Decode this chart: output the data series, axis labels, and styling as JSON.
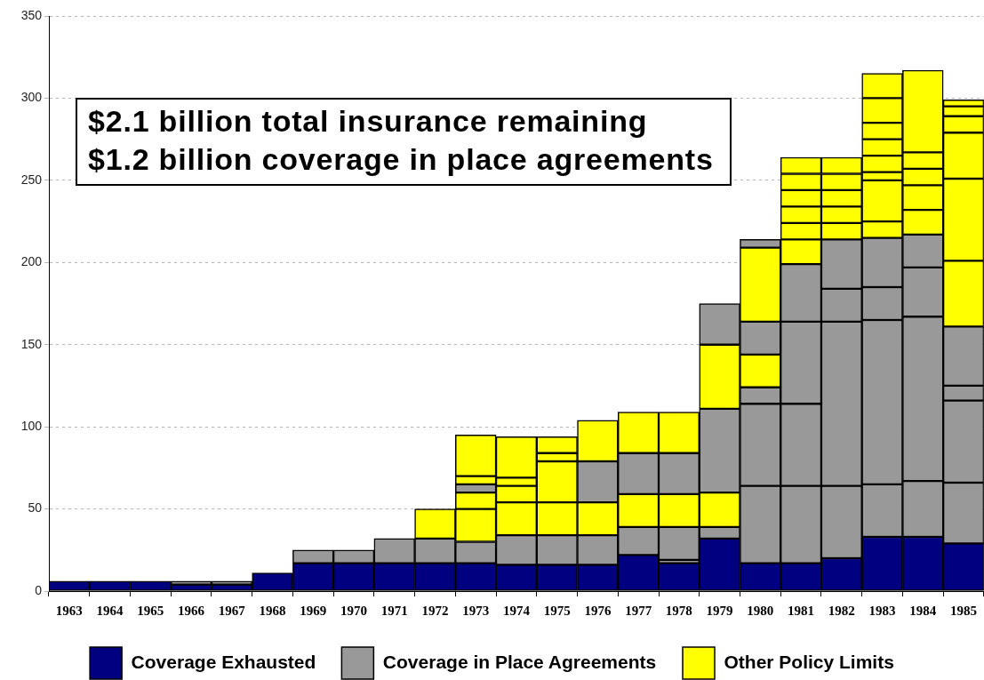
{
  "chart_data": {
    "type": "bar",
    "stacked": true,
    "categories": [
      "1963",
      "1964",
      "1965",
      "1966",
      "1967",
      "1968",
      "1969",
      "1970",
      "1971",
      "1972",
      "1973",
      "1974",
      "1975",
      "1976",
      "1977",
      "1978",
      "1979",
      "1980",
      "1981",
      "1982",
      "1983",
      "1984",
      "1985"
    ],
    "series": [
      {
        "name": "Coverage Exhausted",
        "color": "#000080",
        "values": [
          6,
          6,
          6,
          4,
          4,
          11,
          17,
          17,
          17,
          17,
          17,
          16,
          16,
          16,
          22,
          17,
          32,
          17,
          17,
          20,
          33,
          33,
          29
        ]
      },
      {
        "name": "Coverage in Place Agreements",
        "color": "#999999",
        "values": [
          null,
          null,
          null,
          2,
          2,
          null,
          8,
          8,
          15,
          15,
          13,
          18,
          18,
          18,
          17,
          2,
          7,
          47,
          47,
          44,
          32,
          34,
          37
        ]
      },
      {
        "color": "#999999",
        "values": [
          null,
          null,
          null,
          null,
          null,
          null,
          null,
          null,
          null,
          null,
          null,
          null,
          null,
          null,
          null,
          20,
          null,
          50,
          50,
          100,
          100,
          100,
          50
        ]
      },
      {
        "color": "#999999",
        "values": [
          null,
          null,
          null,
          null,
          null,
          null,
          null,
          null,
          null,
          null,
          null,
          null,
          null,
          null,
          null,
          null,
          null,
          10,
          50,
          20,
          20,
          30,
          9
        ]
      },
      {
        "color": "#999999",
        "values": [
          null,
          null,
          null,
          null,
          null,
          null,
          null,
          null,
          null,
          null,
          null,
          null,
          null,
          null,
          null,
          null,
          null,
          null,
          35,
          30,
          30,
          20,
          36
        ]
      },
      {
        "name": "Other Policy Limits",
        "color": "#ffff00",
        "values": [
          null,
          null,
          null,
          null,
          null,
          null,
          null,
          null,
          null,
          18,
          20,
          20,
          20,
          20,
          20,
          20,
          21,
          20,
          15,
          10,
          10,
          15,
          40
        ]
      },
      {
        "color": "#ffff00",
        "values": [
          null,
          null,
          null,
          null,
          null,
          null,
          null,
          null,
          null,
          null,
          10,
          10,
          25,
          null,
          null,
          null,
          null,
          null,
          10,
          10,
          25,
          15,
          50
        ]
      },
      {
        "color": "#999999",
        "values": [
          null,
          null,
          null,
          null,
          null,
          null,
          null,
          null,
          null,
          null,
          5,
          null,
          null,
          25,
          25,
          25,
          51,
          20,
          null,
          null,
          null,
          null,
          null
        ]
      },
      {
        "color": "#ffff00",
        "values": [
          null,
          null,
          null,
          null,
          null,
          null,
          null,
          null,
          null,
          null,
          5,
          5,
          5,
          25,
          25,
          25,
          39,
          45,
          10,
          10,
          5,
          10,
          28
        ]
      },
      {
        "color": "#999999",
        "values": [
          null,
          null,
          null,
          null,
          null,
          null,
          null,
          null,
          null,
          null,
          null,
          null,
          null,
          null,
          null,
          null,
          25,
          5,
          null,
          null,
          null,
          null,
          null
        ]
      },
      {
        "color": "#ffff00",
        "values": [
          null,
          null,
          null,
          null,
          null,
          null,
          null,
          null,
          null,
          null,
          25,
          25,
          10,
          null,
          null,
          null,
          null,
          null,
          10,
          10,
          10,
          10,
          10
        ]
      },
      {
        "color": "#ffff00",
        "values": [
          null,
          null,
          null,
          null,
          null,
          null,
          null,
          null,
          null,
          null,
          null,
          null,
          null,
          null,
          null,
          null,
          null,
          null,
          10,
          10,
          10,
          50,
          6
        ]
      },
      {
        "color": "#ffff00",
        "values": [
          null,
          null,
          null,
          null,
          null,
          null,
          null,
          null,
          null,
          null,
          null,
          null,
          null,
          null,
          null,
          null,
          null,
          null,
          10,
          null,
          10,
          null,
          4
        ]
      },
      {
        "color": "#ffff00",
        "values": [
          null,
          null,
          null,
          null,
          null,
          null,
          null,
          null,
          null,
          null,
          null,
          null,
          null,
          null,
          null,
          null,
          null,
          null,
          null,
          null,
          15,
          null,
          null
        ]
      },
      {
        "color": "#ffff00",
        "values": [
          null,
          null,
          null,
          null,
          null,
          null,
          null,
          null,
          null,
          null,
          null,
          null,
          null,
          null,
          null,
          null,
          null,
          null,
          null,
          null,
          15,
          null,
          null
        ]
      }
    ],
    "ylim": [
      0,
      350
    ],
    "yticks": [
      0,
      50,
      100,
      150,
      200,
      250,
      300,
      350
    ],
    "grid": "y",
    "legend": "bottom",
    "annotations": [
      "$2.1 billion total insurance remaining",
      "$1.2 billion coverage in place agreements"
    ]
  }
}
